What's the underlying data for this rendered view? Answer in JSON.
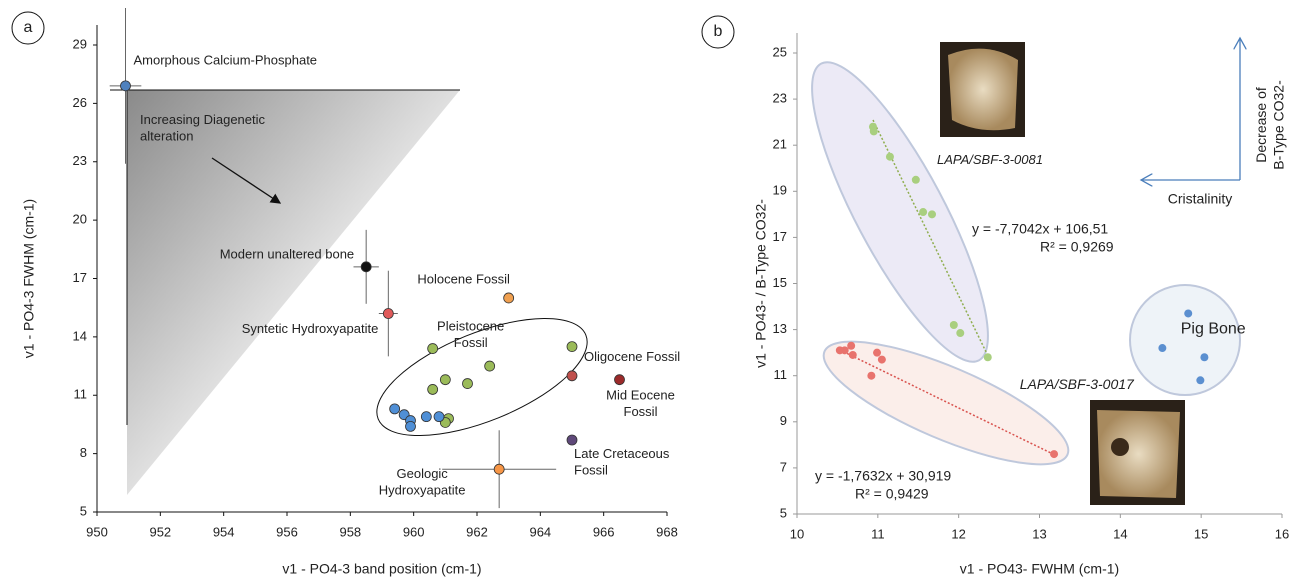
{
  "chart_data": [
    {
      "type": "scatter",
      "panel": "a",
      "xlabel": "v1 - PO4-3  band position (cm-1)",
      "ylabel": "v1 - PO4-3  FWHM (cm-1)",
      "xlim": [
        950,
        968
      ],
      "xticks": [
        950,
        952,
        954,
        956,
        958,
        960,
        962,
        964,
        966,
        968
      ],
      "ylim": [
        5,
        29
      ],
      "yticks": [
        5,
        8,
        11,
        14,
        17,
        20,
        23,
        26,
        29
      ],
      "annotations": [
        "Increasing Diagenetic\nalteration"
      ],
      "series": [
        {
          "name": "Amorphous Calcium-Phosphate",
          "color": "#4f81bd",
          "x": [
            950.9
          ],
          "values": [
            26.9
          ],
          "xerr": [
            0.5
          ],
          "yerr": [
            4.0
          ]
        },
        {
          "name": "Modern unaltered bone",
          "color": "#111111",
          "x": [
            958.5
          ],
          "values": [
            17.6
          ],
          "xerr": [
            0.4
          ],
          "yerr": [
            1.9
          ]
        },
        {
          "name": "Syntetic Hydroxyapatite",
          "color": "#e05a5a",
          "x": [
            959.2
          ],
          "values": [
            15.2
          ],
          "xerr": [
            0.3
          ],
          "yerr": [
            2.2
          ]
        },
        {
          "name": "Holocene Fossil",
          "color": "#f0a050",
          "x": [
            963.0
          ],
          "values": [
            16.0
          ]
        },
        {
          "name": "Pleistocene\nFossil",
          "color": "#9bbb59",
          "x": [
            960.6,
            965.0,
            962.4,
            961.0,
            960.6,
            961.7,
            961.1,
            961.0
          ],
          "values": [
            13.4,
            13.5,
            12.5,
            11.8,
            11.3,
            11.6,
            9.8,
            9.6
          ]
        },
        {
          "color": "#4f8fd6",
          "x": [
            959.4,
            959.7,
            959.9,
            959.9,
            960.4,
            960.8
          ],
          "values": [
            10.3,
            10.0,
            9.7,
            9.4,
            9.9,
            9.9
          ]
        },
        {
          "name": "Geologic\nHydroxyapatite",
          "color": "#f79646",
          "x": [
            962.7
          ],
          "values": [
            7.2
          ],
          "xerr": [
            1.8
          ],
          "yerr": [
            2.0
          ]
        },
        {
          "name": "Oligocene Fossil",
          "color": "#c0504d",
          "x": [
            965.0
          ],
          "values": [
            12.0
          ]
        },
        {
          "name": "Mid Eocene\nFossil",
          "color": "#9b2a2a",
          "x": [
            966.5
          ],
          "values": [
            11.8
          ]
        },
        {
          "name": "Late Cretaceous\nFossil",
          "color": "#5f497a",
          "x": [
            965.0
          ],
          "values": [
            8.7
          ]
        }
      ]
    },
    {
      "type": "scatter",
      "panel": "b",
      "xlabel": "v1 - PO43- FWHM (cm-1)",
      "ylabel": "v1 - PO43- / B-Type CO32-",
      "xlim": [
        10,
        16
      ],
      "xticks": [
        10,
        11,
        12,
        13,
        14,
        15,
        16
      ],
      "ylim": [
        5,
        25
      ],
      "yticks": [
        5,
        7,
        9,
        11,
        13,
        15,
        17,
        19,
        21,
        23,
        25
      ],
      "annotations": [
        "y = -7,7042x + 106,51",
        "R² = 0,9269",
        "y = -1,7632x + 30,919",
        "R² = 0,9429",
        "Cristalinity",
        "Decrease of\nB-Type CO32-"
      ],
      "series": [
        {
          "name": "LAPA/SBF-3-0081",
          "color": "#a9cf7f",
          "x": [
            10.94,
            10.95,
            11.15,
            11.47,
            11.56,
            11.67,
            11.94,
            12.02,
            12.36
          ],
          "values": [
            21.8,
            21.6,
            20.5,
            19.5,
            18.1,
            18.0,
            13.2,
            12.85,
            11.8
          ]
        },
        {
          "name": "LAPA/SBF-3-0017",
          "color": "#e8736d",
          "x": [
            10.59,
            10.67,
            10.69,
            10.99,
            11.05,
            10.92,
            10.53,
            13.18
          ],
          "values": [
            12.1,
            12.3,
            11.9,
            12.0,
            11.7,
            11.0,
            12.1,
            7.6
          ]
        },
        {
          "name": "Pig Bone",
          "color": "#5b8fd0",
          "x": [
            14.84,
            14.52,
            15.04,
            14.99
          ],
          "values": [
            13.7,
            12.2,
            11.8,
            10.8
          ]
        }
      ]
    }
  ]
}
